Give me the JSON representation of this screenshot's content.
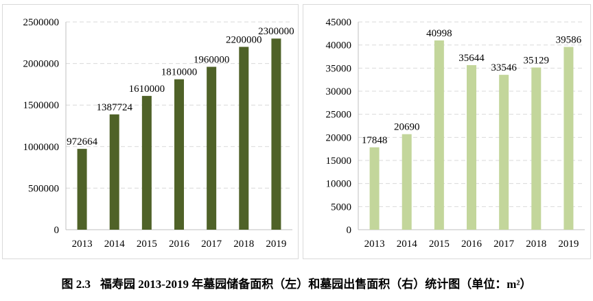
{
  "caption": {
    "label": "图 2.3",
    "text": "福寿园 2013-2019 年墓园储备面积（左）和墓园出售面积（右）统计图（单位：m²）"
  },
  "chart_data": [
    {
      "type": "bar",
      "title": "",
      "xlabel": "",
      "ylabel": "",
      "categories": [
        "2013",
        "2014",
        "2015",
        "2016",
        "2017",
        "2018",
        "2019"
      ],
      "values": [
        972664,
        1387724,
        1610000,
        1810000,
        1960000,
        2200000,
        2300000
      ],
      "data_labels": [
        "972664",
        "1387724",
        "1610000",
        "1810000",
        "1960000",
        "2200000",
        "2300000"
      ],
      "yticks": [
        "0",
        "500000",
        "1000000",
        "1500000",
        "2000000",
        "2500000"
      ],
      "ylim": [
        0,
        2500000
      ],
      "grid": true,
      "legend": "none",
      "color": "#4f6228"
    },
    {
      "type": "bar",
      "title": "",
      "xlabel": "",
      "ylabel": "",
      "categories": [
        "2013",
        "2014",
        "2015",
        "2016",
        "2017",
        "2018",
        "2019"
      ],
      "values": [
        17848,
        20690,
        40998,
        35644,
        33546,
        35129,
        39586
      ],
      "data_labels": [
        "17848",
        "20690",
        "40998",
        "35644",
        "33546",
        "35129",
        "39586"
      ],
      "yticks": [
        "0",
        "5000",
        "10000",
        "15000",
        "20000",
        "25000",
        "30000",
        "35000",
        "40000",
        "45000"
      ],
      "ylim": [
        0,
        45000
      ],
      "grid": true,
      "legend": "none",
      "color": "#c3d69b"
    }
  ]
}
